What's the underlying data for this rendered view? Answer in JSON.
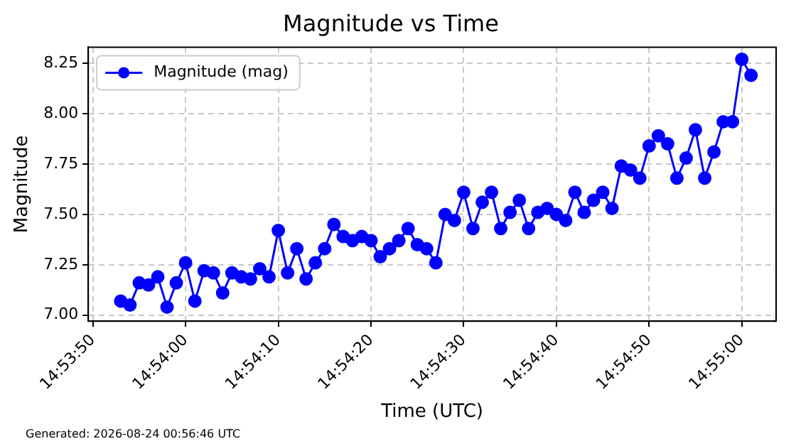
{
  "chart_data": {
    "type": "line",
    "title": "Magnitude vs Time",
    "xlabel": "Time (UTC)",
    "ylabel": "Magnitude",
    "annotations": [
      "Generated: 2026-08-24 00:56:46 UTC"
    ],
    "x": [
      14.898056,
      14.898333,
      14.898611,
      14.898889,
      14.899167,
      14.899444,
      14.899722,
      14.9,
      14.900278,
      14.900556,
      14.900833,
      14.901111,
      14.901389,
      14.901667,
      14.901944,
      14.902222,
      14.9025,
      14.902778,
      14.903056,
      14.903333,
      14.903611,
      14.903889,
      14.904167,
      14.904444,
      14.904722,
      14.905,
      14.905278,
      14.905556,
      14.905833,
      14.906111,
      14.906389,
      14.906667,
      14.906944,
      14.907222,
      14.9075,
      14.907778,
      14.908056,
      14.908333,
      14.908611,
      14.908889,
      14.909167,
      14.909444,
      14.909722,
      14.91,
      14.910278,
      14.910556,
      14.910833,
      14.911111,
      14.911389,
      14.911667,
      14.911944,
      14.912222,
      14.9125,
      14.912778,
      14.913056,
      14.913333,
      14.913611,
      14.913889,
      14.914167,
      14.914444,
      14.914722,
      14.915,
      14.915278,
      14.915556,
      14.915833,
      14.916111,
      14.916389,
      14.916667,
      14.916944
    ],
    "series": [
      {
        "name": "Magnitude (mag)",
        "color": "#0000ff",
        "values": [
          7.07,
          7.05,
          7.16,
          7.15,
          7.19,
          7.04,
          7.16,
          7.26,
          7.07,
          7.22,
          7.21,
          7.11,
          7.21,
          7.19,
          7.18,
          7.23,
          7.19,
          7.42,
          7.21,
          7.33,
          7.18,
          7.26,
          7.33,
          7.45,
          7.39,
          7.37,
          7.39,
          7.37,
          7.29,
          7.33,
          7.37,
          7.43,
          7.35,
          7.33,
          7.26,
          7.5,
          7.47,
          7.61,
          7.43,
          7.56,
          7.61,
          7.43,
          7.51,
          7.57,
          7.43,
          7.51,
          7.53,
          7.5,
          7.47,
          7.61,
          7.51,
          7.57,
          7.61,
          7.53,
          7.74,
          7.72,
          7.68,
          7.84,
          7.89,
          7.85,
          7.68,
          7.78,
          7.92,
          7.68,
          7.81,
          7.96,
          7.96,
          8.27,
          8.19
        ]
      }
    ],
    "xlim": [
      14.897083,
      14.917695
    ],
    "xticks": [
      {
        "value": 14.897222,
        "label": "14:53:50"
      },
      {
        "value": 14.9,
        "label": "14:54:00"
      },
      {
        "value": 14.902778,
        "label": "14:54:10"
      },
      {
        "value": 14.905556,
        "label": "14:54:20"
      },
      {
        "value": 14.908333,
        "label": "14:54:30"
      },
      {
        "value": 14.911111,
        "label": "14:54:40"
      },
      {
        "value": 14.913889,
        "label": "14:54:50"
      },
      {
        "value": 14.916667,
        "label": "14:55:00"
      }
    ],
    "ylim": [
      6.97,
      8.33
    ],
    "yticks": [
      {
        "value": 7,
        "label": "7.00"
      },
      {
        "value": 7.25,
        "label": "7.25"
      },
      {
        "value": 7.5,
        "label": "7.50"
      },
      {
        "value": 7.75,
        "label": "7.75"
      },
      {
        "value": 8,
        "label": "8.00"
      },
      {
        "value": 8.25,
        "label": "8.25"
      }
    ],
    "grid": true,
    "legend": "top left",
    "marker": "circle",
    "line_style": "solid"
  }
}
